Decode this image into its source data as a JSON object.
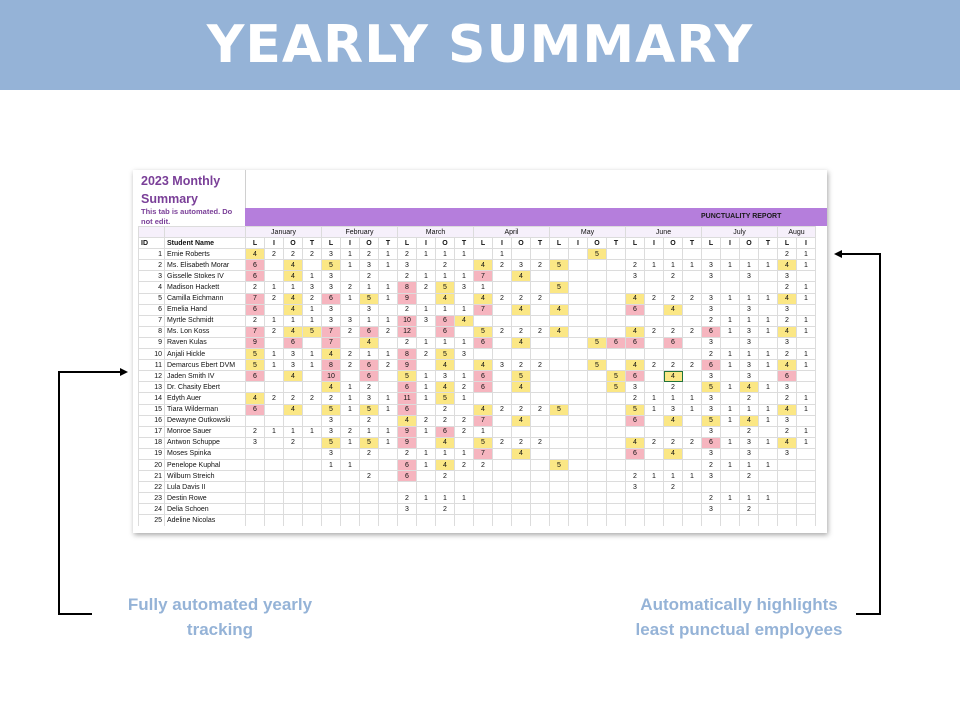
{
  "banner": {
    "title": "YEARLY SUMMARY"
  },
  "sheet": {
    "title": "2023 Monthly Summary",
    "note": "This tab is automated. Do not edit.",
    "report_label": "PUNCTUALITY REPORT",
    "months": [
      "January",
      "February",
      "March",
      "April",
      "May",
      "June",
      "July",
      "Augu"
    ],
    "month_colspans": [
      4,
      4,
      4,
      4,
      4,
      4,
      4,
      2
    ],
    "header_id": "ID",
    "header_name": "Student Name",
    "sub_columns": [
      "L",
      "I",
      "O",
      "T",
      "L",
      "I",
      "O",
      "T",
      "L",
      "I",
      "O",
      "T",
      "L",
      "I",
      "O",
      "T",
      "L",
      "I",
      "O",
      "T",
      "L",
      "I",
      "O",
      "T",
      "L",
      "I",
      "O",
      "T",
      "L",
      "I"
    ],
    "rows": [
      {
        "id": "1",
        "name": "Ernie Roberts",
        "v": [
          "4y",
          "2",
          "2",
          "2",
          "3",
          "1",
          "2",
          "1",
          "2",
          "1",
          "1",
          "1",
          "",
          "1",
          "",
          "",
          "",
          "",
          "5y",
          "",
          "",
          "",
          "",
          "",
          "",
          "",
          "",
          "",
          "2",
          "1"
        ]
      },
      {
        "id": "2",
        "name": "Ms. Elisabeth Morar",
        "v": [
          "6r",
          "",
          "4y",
          "",
          "5y",
          "1",
          "3",
          "1",
          "3",
          "",
          "2",
          "",
          "4y",
          "2",
          "3",
          "2",
          "5y",
          "",
          "",
          "",
          "2",
          "1",
          "1",
          "1",
          "3",
          "1",
          "1",
          "1",
          "4y",
          "1"
        ]
      },
      {
        "id": "3",
        "name": "Gisselle Stokes IV",
        "v": [
          "6r",
          "",
          "4y",
          "1",
          "3",
          "",
          "2",
          "",
          "2",
          "1",
          "1",
          "1",
          "7r",
          "",
          "4y",
          "",
          "",
          "",
          "",
          "",
          "3",
          "",
          "2",
          "",
          "3",
          "",
          "3",
          "",
          "3",
          ""
        ]
      },
      {
        "id": "4",
        "name": "Madison Hackett",
        "v": [
          "2",
          "1",
          "1",
          "3",
          "3",
          "2",
          "1",
          "1",
          "8r",
          "2",
          "5y",
          "3",
          "1",
          "",
          "",
          "",
          "5y",
          "",
          "",
          "",
          "",
          "",
          "",
          "",
          "",
          "",
          "",
          "",
          "2",
          "1"
        ]
      },
      {
        "id": "5",
        "name": "Camilla Eichmann",
        "v": [
          "7r",
          "2",
          "4y",
          "2",
          "6r",
          "1",
          "5y",
          "1",
          "9r",
          "",
          "4y",
          "",
          "4y",
          "2",
          "2",
          "2",
          "",
          "",
          "",
          "",
          "4y",
          "2",
          "2",
          "2",
          "3",
          "1",
          "1",
          "1",
          "4y",
          "1"
        ]
      },
      {
        "id": "6",
        "name": "Emelia Hand",
        "v": [
          "6r",
          "",
          "4y",
          "1",
          "3",
          "",
          "3",
          "",
          "2",
          "1",
          "1",
          "1",
          "7r",
          "",
          "4y",
          "",
          "4y",
          "",
          "",
          "",
          "6r",
          "",
          "4y",
          "",
          "3",
          "",
          "3",
          "",
          "3",
          ""
        ]
      },
      {
        "id": "7",
        "name": "Myrtle Schmidt",
        "v": [
          "2",
          "1",
          "1",
          "1",
          "3",
          "3",
          "1",
          "1",
          "10r",
          "3",
          "6r",
          "4y",
          "",
          "",
          "",
          "",
          "",
          "",
          "",
          "",
          "",
          "",
          "",
          "",
          "2",
          "1",
          "1",
          "1",
          "2",
          "1"
        ]
      },
      {
        "id": "8",
        "name": "Ms. Lon Koss",
        "v": [
          "7r",
          "2",
          "4y",
          "5y",
          "7r",
          "2",
          "6r",
          "2",
          "12r",
          "",
          "6r",
          "",
          "5y",
          "2",
          "2",
          "2",
          "4y",
          "",
          "",
          "",
          "4y",
          "2",
          "2",
          "2",
          "6r",
          "1",
          "3",
          "1",
          "4y",
          "1"
        ]
      },
      {
        "id": "9",
        "name": "Raven Kulas",
        "v": [
          "9r",
          "",
          "6r",
          "",
          "7r",
          "",
          "4y",
          "",
          "2",
          "1",
          "1",
          "1",
          "6r",
          "",
          "4y",
          "",
          "",
          "",
          "5y",
          "6r",
          "6r",
          "",
          "6r",
          "",
          "3",
          "",
          "3",
          "",
          "3",
          ""
        ]
      },
      {
        "id": "10",
        "name": "Anjali Hickle",
        "v": [
          "5y",
          "1",
          "3",
          "1",
          "4y",
          "2",
          "1",
          "1",
          "8r",
          "2",
          "5y",
          "3",
          "",
          "",
          "",
          "",
          "",
          "",
          "",
          "",
          "",
          "",
          "",
          "",
          "2",
          "1",
          "1",
          "1",
          "2",
          "1"
        ]
      },
      {
        "id": "11",
        "name": "Demarcus Ebert DVM",
        "v": [
          "5y",
          "1",
          "3",
          "1",
          "8r",
          "2",
          "6r",
          "2",
          "9r",
          "",
          "4y",
          "",
          "4y",
          "3",
          "2",
          "2",
          "",
          "",
          "5y",
          "",
          "4y",
          "2",
          "2",
          "2",
          "6r",
          "1",
          "3",
          "1",
          "4y",
          "1"
        ]
      },
      {
        "id": "12",
        "name": "Jaden Smith IV",
        "v": [
          "6r",
          "",
          "4y",
          "",
          "10r",
          "",
          "6r",
          "",
          "5y",
          "1",
          "3",
          "1",
          "6r",
          "",
          "5y",
          "",
          "",
          "",
          "",
          "5y",
          "6r",
          "",
          "4ys",
          "",
          "3",
          "",
          "3",
          "",
          "6r",
          ""
        ]
      },
      {
        "id": "13",
        "name": "Dr. Chasity Ebert",
        "v": [
          "",
          "",
          "",
          "",
          "4y",
          "1",
          "2",
          "",
          "6r",
          "1",
          "4y",
          "2",
          "6r",
          "",
          "4y",
          "",
          "",
          "",
          "",
          "5y",
          "3",
          "",
          "2",
          "",
          "5y",
          "1",
          "4y",
          "1",
          "3",
          ""
        ]
      },
      {
        "id": "14",
        "name": "Edyth Auer",
        "v": [
          "4y",
          "2",
          "2",
          "2",
          "2",
          "1",
          "3",
          "1",
          "11r",
          "1",
          "5y",
          "1",
          "",
          "",
          "",
          "",
          "",
          "",
          "",
          "",
          "2",
          "1",
          "1",
          "1",
          "3",
          "",
          "2",
          "",
          "2",
          "1"
        ]
      },
      {
        "id": "15",
        "name": "Tiara Wilderman",
        "v": [
          "6r",
          "",
          "4y",
          "",
          "5y",
          "1",
          "5y",
          "1",
          "6r",
          "",
          "2",
          "",
          "4y",
          "2",
          "2",
          "2",
          "5y",
          "",
          "",
          "",
          "5y",
          "1",
          "3",
          "1",
          "3",
          "1",
          "1",
          "1",
          "4y",
          "1"
        ]
      },
      {
        "id": "16",
        "name": "Dewayne Outkowski",
        "v": [
          "",
          "",
          "",
          "",
          "3",
          "",
          "2",
          "",
          "4y",
          "2",
          "2",
          "2",
          "7r",
          "",
          "4y",
          "",
          "",
          "",
          "",
          "",
          "6r",
          "",
          "4y",
          "",
          "5y",
          "1",
          "4y",
          "1",
          "3",
          ""
        ]
      },
      {
        "id": "17",
        "name": "Monroe Sauer",
        "v": [
          "2",
          "1",
          "1",
          "1",
          "3",
          "2",
          "1",
          "1",
          "9r",
          "1",
          "6r",
          "2",
          "1",
          "",
          "",
          "",
          "",
          "",
          "",
          "",
          "",
          "",
          "",
          "",
          "3",
          "",
          "2",
          "",
          "2",
          "1"
        ]
      },
      {
        "id": "18",
        "name": "Antwon Schuppe",
        "v": [
          "3",
          "",
          "2",
          "",
          "5y",
          "1",
          "5y",
          "1",
          "9r",
          "",
          "4y",
          "",
          "5y",
          "2",
          "2",
          "2",
          "",
          "",
          "",
          "",
          "4y",
          "2",
          "2",
          "2",
          "6r",
          "1",
          "3",
          "1",
          "4y",
          "1"
        ]
      },
      {
        "id": "19",
        "name": "Moses Spinka",
        "v": [
          "",
          "",
          "",
          "",
          "3",
          "",
          "2",
          "",
          "2",
          "1",
          "1",
          "1",
          "7r",
          "",
          "4y",
          "",
          "",
          "",
          "",
          "",
          "6r",
          "",
          "4y",
          "",
          "3",
          "",
          "3",
          "",
          "3",
          ""
        ]
      },
      {
        "id": "20",
        "name": "Penelope Kuphal",
        "v": [
          "",
          "",
          "",
          "",
          "1",
          "1",
          "",
          "",
          "6r",
          "1",
          "4y",
          "2",
          "2",
          "",
          "",
          "",
          "5y",
          "",
          "",
          "",
          "",
          "",
          "",
          "",
          "2",
          "1",
          "1",
          "1",
          "",
          ""
        ]
      },
      {
        "id": "21",
        "name": "Wilburn Streich",
        "v": [
          "",
          "",
          "",
          "",
          "",
          "",
          "2",
          "",
          "6r",
          "",
          "2",
          "",
          "",
          "",
          "",
          "",
          "",
          "",
          "",
          "",
          "2",
          "1",
          "1",
          "1",
          "3",
          "",
          "2",
          "",
          "",
          ""
        ]
      },
      {
        "id": "22",
        "name": "Lula Davis II",
        "v": [
          "",
          "",
          "",
          "",
          "",
          "",
          "",
          "",
          "",
          "",
          "",
          "",
          "",
          "",
          "",
          "",
          "",
          "",
          "",
          "",
          "3",
          "",
          "2",
          "",
          "",
          "",
          "",
          "",
          "",
          ""
        ]
      },
      {
        "id": "23",
        "name": "Destin Rowe",
        "v": [
          "",
          "",
          "",
          "",
          "",
          "",
          "",
          "",
          "2",
          "1",
          "1",
          "1",
          "",
          "",
          "",
          "",
          "",
          "",
          "",
          "",
          "",
          "",
          "",
          "",
          "2",
          "1",
          "1",
          "1",
          "",
          ""
        ]
      },
      {
        "id": "24",
        "name": "Delia Schoen",
        "v": [
          "",
          "",
          "",
          "",
          "",
          "",
          "",
          "",
          "3",
          "",
          "2",
          "",
          "",
          "",
          "",
          "",
          "",
          "",
          "",
          "",
          "",
          "",
          "",
          "",
          "3",
          "",
          "2",
          "",
          "",
          ""
        ]
      },
      {
        "id": "25",
        "name": "Adeline Nicolas",
        "v": [
          "",
          "",
          "",
          "",
          "",
          "",
          "",
          "",
          "",
          "",
          "",
          "",
          "",
          "",
          "",
          "",
          "",
          "",
          "",
          "",
          "",
          "",
          "",
          "",
          "",
          "",
          "",
          "",
          "",
          ""
        ]
      }
    ]
  },
  "callouts": {
    "left": "Fully automated yearly tracking",
    "right": "Automatically highlights least punctual employees"
  },
  "colors": {
    "banner": "#95b3d7",
    "title_purple": "#7a3f98",
    "report_band": "#b57edc",
    "highlight_yellow": "#fbe785",
    "highlight_red": "#f6b5bf"
  }
}
